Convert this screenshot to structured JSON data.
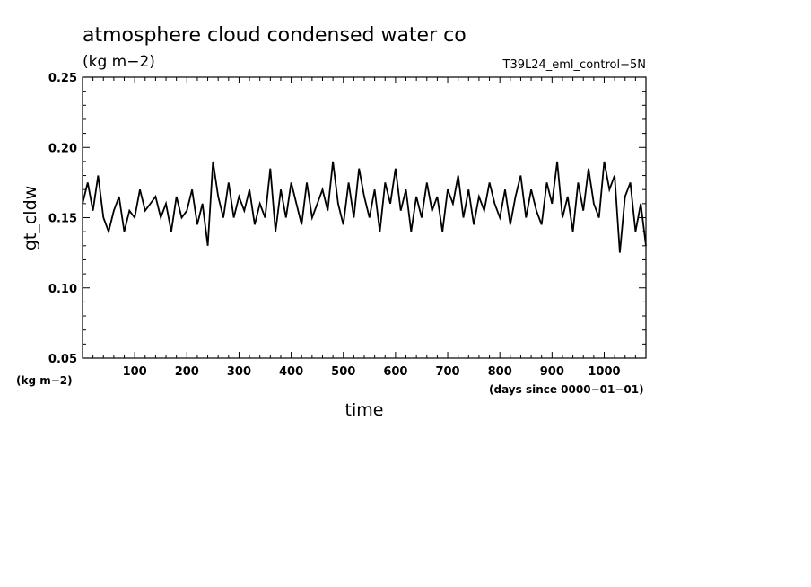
{
  "chart_data": {
    "type": "line",
    "title": "atmosphere cloud condensed water co",
    "subtitle": "(kg m−2)",
    "run_label": "T39L24_eml_control−5N",
    "ylabel": "gt_cldw",
    "xlabel": "time",
    "x_unit": "(days since 0000−01−01)",
    "y_unit": "(kg m−2)",
    "xlim": [
      0,
      1080
    ],
    "ylim": [
      0.05,
      0.25
    ],
    "x_ticks": [
      100,
      200,
      300,
      400,
      500,
      600,
      700,
      800,
      900,
      1000
    ],
    "x_tick_labels": [
      "100",
      "200",
      "300",
      "400",
      "500",
      "600",
      "700",
      "800",
      "900",
      "1000"
    ],
    "y_ticks": [
      0.05,
      0.1,
      0.15,
      0.2,
      0.25
    ],
    "y_tick_labels": [
      "0.05",
      "0.10",
      "0.15",
      "0.20",
      "0.25"
    ],
    "line_color": "#000000",
    "series": [
      {
        "x": [
          0,
          10,
          20,
          30,
          40,
          50,
          60,
          70,
          80,
          90,
          100,
          110,
          120,
          130,
          140,
          150,
          160,
          170,
          180,
          190,
          200,
          210,
          220,
          230,
          240,
          250,
          260,
          270,
          280,
          290,
          300,
          310,
          320,
          330,
          340,
          350,
          360,
          370,
          380,
          390,
          400,
          410,
          420,
          430,
          440,
          450,
          460,
          470,
          480,
          490,
          500,
          510,
          520,
          530,
          540,
          550,
          560,
          570,
          580,
          590,
          600,
          610,
          620,
          630,
          640,
          650,
          660,
          670,
          680,
          690,
          700,
          710,
          720,
          730,
          740,
          750,
          760,
          770,
          780,
          790,
          800,
          810,
          820,
          830,
          840,
          850,
          860,
          870,
          880,
          890,
          900,
          910,
          920,
          930,
          940,
          950,
          960,
          970,
          980,
          990,
          1000,
          1010,
          1020,
          1030,
          1040,
          1050,
          1060,
          1070,
          1080
        ],
        "values": [
          0.16,
          0.175,
          0.155,
          0.18,
          0.15,
          0.14,
          0.155,
          0.165,
          0.14,
          0.155,
          0.15,
          0.17,
          0.155,
          0.16,
          0.165,
          0.15,
          0.16,
          0.14,
          0.165,
          0.15,
          0.155,
          0.17,
          0.145,
          0.16,
          0.13,
          0.19,
          0.165,
          0.15,
          0.175,
          0.15,
          0.165,
          0.155,
          0.17,
          0.145,
          0.16,
          0.15,
          0.185,
          0.14,
          0.17,
          0.15,
          0.175,
          0.16,
          0.145,
          0.175,
          0.15,
          0.16,
          0.17,
          0.155,
          0.19,
          0.16,
          0.145,
          0.175,
          0.15,
          0.185,
          0.165,
          0.15,
          0.17,
          0.14,
          0.175,
          0.16,
          0.185,
          0.155,
          0.17,
          0.14,
          0.165,
          0.15,
          0.175,
          0.155,
          0.165,
          0.14,
          0.17,
          0.16,
          0.18,
          0.15,
          0.17,
          0.145,
          0.165,
          0.155,
          0.175,
          0.16,
          0.15,
          0.17,
          0.145,
          0.165,
          0.18,
          0.15,
          0.17,
          0.155,
          0.145,
          0.175,
          0.16,
          0.19,
          0.15,
          0.165,
          0.14,
          0.175,
          0.155,
          0.185,
          0.16,
          0.15,
          0.19,
          0.17,
          0.18,
          0.125,
          0.165,
          0.175,
          0.14,
          0.16,
          0.13
        ]
      }
    ]
  }
}
